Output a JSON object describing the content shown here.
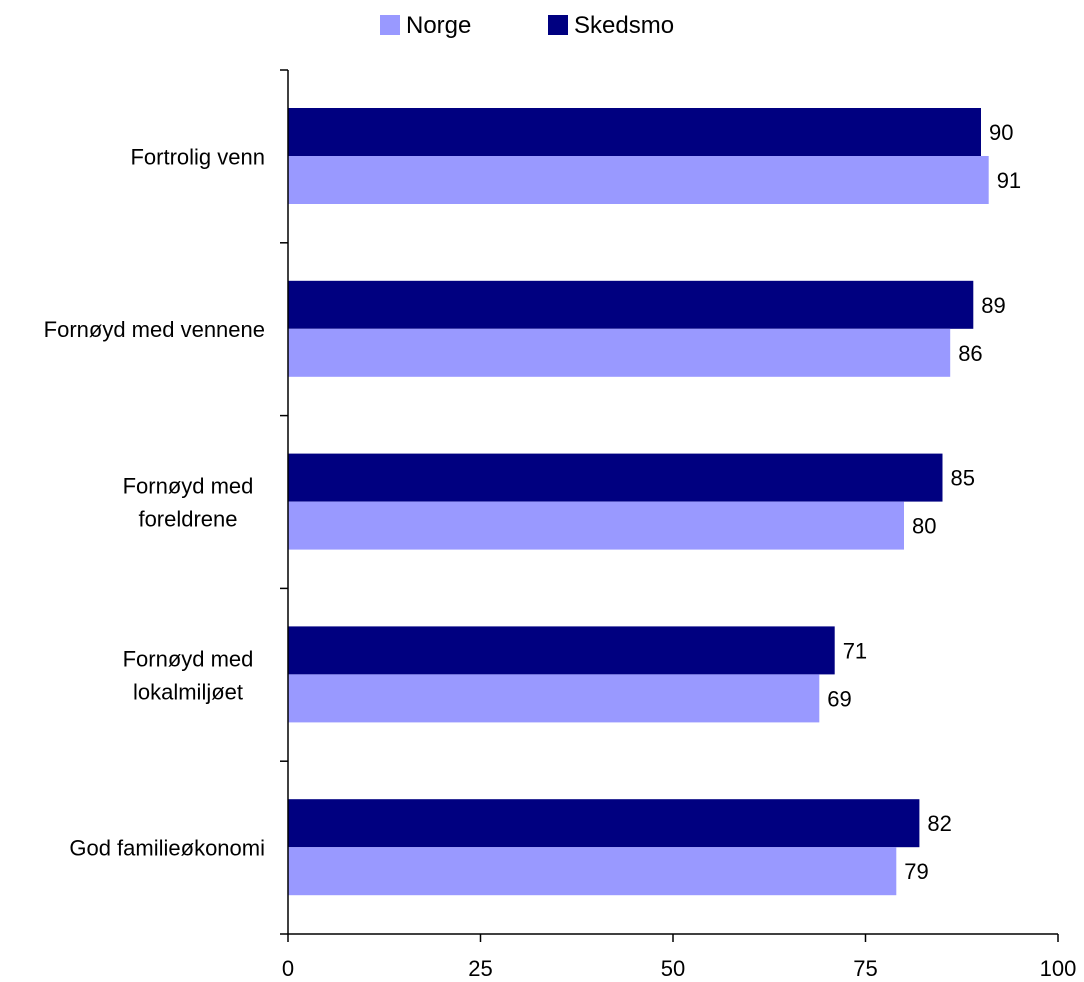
{
  "chart_data": {
    "type": "bar",
    "orientation": "horizontal",
    "title": "",
    "xlabel": "",
    "ylabel": "",
    "xlim": [
      0,
      100
    ],
    "x_ticks": [
      0,
      25,
      50,
      75,
      100
    ],
    "grid": false,
    "legend_position": "top",
    "categories": [
      [
        "Fortrolig venn"
      ],
      [
        "Fornøyd med vennene"
      ],
      [
        "Fornøyd med",
        "foreldrene"
      ],
      [
        "Fornøyd med",
        "lokalmiljøet"
      ],
      [
        "God familieøkonomi"
      ]
    ],
    "series": [
      {
        "name": "Skedsmo",
        "color": "#000080",
        "values": [
          90,
          89,
          85,
          71,
          82
        ]
      },
      {
        "name": "Norge",
        "color": "#9999ff",
        "values": [
          91,
          86,
          80,
          69,
          79
        ]
      }
    ],
    "legend_order": [
      "Norge",
      "Skedsmo"
    ]
  }
}
